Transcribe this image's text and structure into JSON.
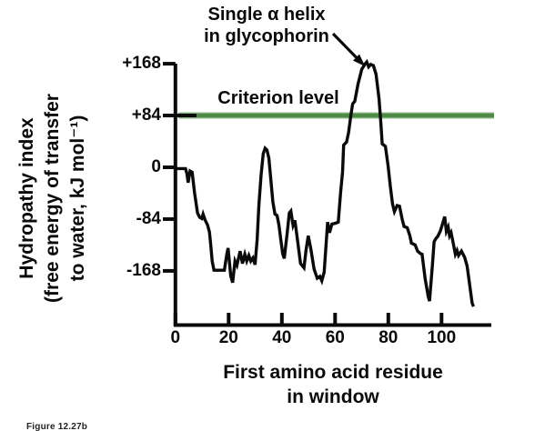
{
  "figure": {
    "annotation": {
      "line1": "Single α helix",
      "line2": "in glycophorin"
    },
    "criterion_label": "Criterion level",
    "caption": "Figure 12.27b",
    "colors": {
      "curve_black": "#0a0a0a",
      "criterion_green": "#4e8b47",
      "criterion_green_halo": "#93bd8d"
    }
  },
  "chart_data": {
    "type": "line",
    "title": "",
    "xlabel": "First amino acid residue in window",
    "ylabel": "Hydropathy index (free energy of transfer to water, kJ mol⁻¹)",
    "xlabel_lines": [
      "First amino acid residue",
      "in window"
    ],
    "ylabel_lines": [
      "Hydropathy index",
      "(free energy of transfer",
      "to water, kJ mol⁻¹)"
    ],
    "xlim": [
      0,
      119
    ],
    "ylim": [
      -255,
      168
    ],
    "grid": false,
    "legend": "none",
    "x_ticks": [
      0,
      20,
      40,
      60,
      80,
      100
    ],
    "y_ticks": [
      {
        "value": 168,
        "label": "+168"
      },
      {
        "value": 84,
        "label": "+84"
      },
      {
        "value": 0,
        "label": "0"
      },
      {
        "value": -84,
        "label": "-84"
      },
      {
        "value": -168,
        "label": "-168"
      }
    ],
    "criterion_level": 84,
    "annotation_target": {
      "x": 71,
      "y": 165
    },
    "series": [
      {
        "name": "hydropathy",
        "points": [
          [
            0,
            -2
          ],
          [
            3.8,
            -2
          ],
          [
            4.3,
            -10
          ],
          [
            4.8,
            -25
          ],
          [
            5.5,
            -6
          ],
          [
            6.3,
            -8
          ],
          [
            7.2,
            -42
          ],
          [
            8.3,
            -74
          ],
          [
            9.1,
            -81
          ],
          [
            9.9,
            -83
          ],
          [
            10.4,
            -76
          ],
          [
            11.1,
            -85
          ],
          [
            12.1,
            -94
          ],
          [
            12.8,
            -105
          ],
          [
            13.3,
            -127
          ],
          [
            13.8,
            -152
          ],
          [
            14.5,
            -167
          ],
          [
            18.4,
            -167
          ],
          [
            19.3,
            -141
          ],
          [
            19.8,
            -131
          ],
          [
            20.8,
            -176
          ],
          [
            21.5,
            -187
          ],
          [
            22.4,
            -152
          ],
          [
            23.1,
            -159
          ],
          [
            24.3,
            -136
          ],
          [
            25.2,
            -156
          ],
          [
            26.1,
            -141
          ],
          [
            26.8,
            -152
          ],
          [
            27.6,
            -143
          ],
          [
            28.3,
            -152
          ],
          [
            29.1,
            -147
          ],
          [
            29.9,
            -158
          ],
          [
            30.7,
            -118
          ],
          [
            31.4,
            -60
          ],
          [
            32.2,
            -12
          ],
          [
            33,
            22
          ],
          [
            33.7,
            31
          ],
          [
            34.4,
            28
          ],
          [
            35.1,
            15
          ],
          [
            35.9,
            -22
          ],
          [
            36.6,
            -56
          ],
          [
            37.4,
            -76
          ],
          [
            38.2,
            -78
          ],
          [
            38.9,
            -94
          ],
          [
            39.6,
            -117
          ],
          [
            40.3,
            -140
          ],
          [
            40.9,
            -148
          ],
          [
            41.9,
            -110
          ],
          [
            42.8,
            -74
          ],
          [
            43.4,
            -71
          ],
          [
            44.2,
            -94
          ],
          [
            44.9,
            -86
          ],
          [
            45.8,
            -116
          ],
          [
            47,
            -156
          ],
          [
            48.3,
            -163
          ],
          [
            49.1,
            -134
          ],
          [
            49.9,
            -111
          ],
          [
            50.9,
            -133
          ],
          [
            52.1,
            -165
          ],
          [
            53.3,
            -180
          ],
          [
            54.3,
            -177
          ],
          [
            55,
            -184
          ],
          [
            55.9,
            -170
          ],
          [
            57.2,
            -89
          ],
          [
            57.9,
            -106
          ],
          [
            58.8,
            -92
          ],
          [
            59.9,
            -91
          ],
          [
            61.2,
            -89
          ],
          [
            62.1,
            -40
          ],
          [
            62.8,
            -8
          ],
          [
            63.2,
            36
          ],
          [
            64.3,
            41
          ],
          [
            65.1,
            57
          ],
          [
            65.9,
            84
          ],
          [
            66.6,
            103
          ],
          [
            67.4,
            107
          ],
          [
            68.6,
            135
          ],
          [
            70,
            159
          ],
          [
            71.3,
            168
          ],
          [
            71.9,
            171
          ],
          [
            72.6,
            163
          ],
          [
            73.4,
            167
          ],
          [
            74.4,
            165
          ],
          [
            75.4,
            151
          ],
          [
            76.5,
            111
          ],
          [
            77.1,
            78
          ],
          [
            77.7,
            38
          ],
          [
            78.9,
            34
          ],
          [
            79.9,
            3
          ],
          [
            80.8,
            -32
          ],
          [
            81.6,
            -60
          ],
          [
            82.3,
            -72
          ],
          [
            83.3,
            -62
          ],
          [
            84.2,
            -63
          ],
          [
            85.2,
            -84
          ],
          [
            85.9,
            -96
          ],
          [
            87.1,
            -98
          ],
          [
            88.1,
            -111
          ],
          [
            88.7,
            -123
          ],
          [
            90.1,
            -126
          ],
          [
            91,
            -136
          ],
          [
            92.1,
            -140
          ],
          [
            92.7,
            -141
          ],
          [
            93.8,
            -180
          ],
          [
            95,
            -210
          ],
          [
            95.5,
            -217
          ],
          [
            96.6,
            -156
          ],
          [
            97.2,
            -121
          ],
          [
            97.8,
            -116
          ],
          [
            98.6,
            -112
          ],
          [
            99.6,
            -103
          ],
          [
            101.2,
            -80
          ],
          [
            101.8,
            -104
          ],
          [
            102.5,
            -97
          ],
          [
            103,
            -111
          ],
          [
            103.6,
            -106
          ],
          [
            104.2,
            -119
          ],
          [
            105.2,
            -141
          ],
          [
            105.8,
            -135
          ],
          [
            106.4,
            -143
          ],
          [
            107.5,
            -136
          ],
          [
            108.7,
            -146
          ],
          [
            109.6,
            -160
          ],
          [
            110.4,
            -185
          ],
          [
            111.5,
            -220
          ],
          [
            112,
            -226
          ]
        ]
      }
    ]
  }
}
